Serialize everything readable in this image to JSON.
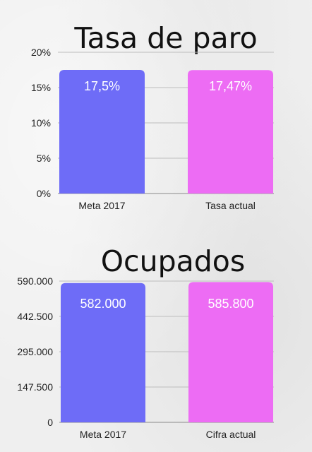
{
  "chart_data": [
    {
      "type": "bar",
      "title": "Tasa de paro",
      "categories": [
        "Meta 2017",
        "Tasa actual"
      ],
      "values": [
        17.5,
        17.47
      ],
      "value_labels": [
        "17,5%",
        "17,47%"
      ],
      "colors": [
        "#6e6cf7",
        "#ed6cf4"
      ],
      "ylim": [
        0,
        20
      ],
      "yticks": [
        0,
        5,
        10,
        15,
        20
      ],
      "ytick_labels": [
        "0%",
        "5%",
        "10%",
        "15%",
        "20%"
      ],
      "grid": true
    },
    {
      "type": "bar",
      "title": "Ocupados",
      "categories": [
        "Meta 2017",
        "Cifra actual"
      ],
      "values": [
        582000,
        585800
      ],
      "value_labels": [
        "582.000",
        "585.800"
      ],
      "colors": [
        "#6e6cf7",
        "#ed6cf4"
      ],
      "ylim": [
        0,
        590000
      ],
      "yticks": [
        0,
        147500,
        295000,
        442500,
        590000
      ],
      "ytick_labels": [
        "0",
        "147.500",
        "295.000",
        "442.500",
        "590.000"
      ],
      "grid": true
    }
  ]
}
